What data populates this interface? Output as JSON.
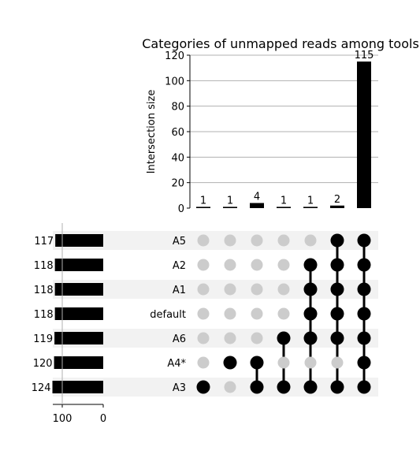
{
  "chart_data": {
    "type": "upset",
    "title": "Categories of unmapped reads among tools",
    "intersection_axis_label": "Intersection size",
    "intersection_ylim": [
      0,
      120
    ],
    "intersection_ticks": [
      0,
      20,
      40,
      60,
      80,
      100,
      120
    ],
    "set_size_ticks": [
      100,
      0
    ],
    "sets": [
      {
        "name": "A5",
        "size": 117
      },
      {
        "name": "A2",
        "size": 118
      },
      {
        "name": "A1",
        "size": 118
      },
      {
        "name": "default",
        "size": 118
      },
      {
        "name": "A6",
        "size": 119
      },
      {
        "name": "A4*",
        "size": 120
      },
      {
        "name": "A3",
        "size": 124
      }
    ],
    "intersections": [
      {
        "size": 1,
        "sets": [
          "A3"
        ]
      },
      {
        "size": 1,
        "sets": [
          "A4*"
        ]
      },
      {
        "size": 4,
        "sets": [
          "A4*",
          "A3"
        ]
      },
      {
        "size": 1,
        "sets": [
          "A6",
          "A3"
        ]
      },
      {
        "size": 1,
        "sets": [
          "A2",
          "A1",
          "default",
          "A6",
          "A3"
        ]
      },
      {
        "size": 2,
        "sets": [
          "A5",
          "A2",
          "A1",
          "default",
          "A6",
          "A3"
        ]
      },
      {
        "size": 115,
        "sets": [
          "A5",
          "A2",
          "A1",
          "default",
          "A6",
          "A4*",
          "A3"
        ]
      }
    ],
    "grid": true,
    "colors": {
      "bar": "#000000",
      "dot_active": "#000000",
      "dot_inactive": "#cccccc",
      "stripe": "#f2f2f2",
      "grid": "#b0b0b0"
    }
  }
}
